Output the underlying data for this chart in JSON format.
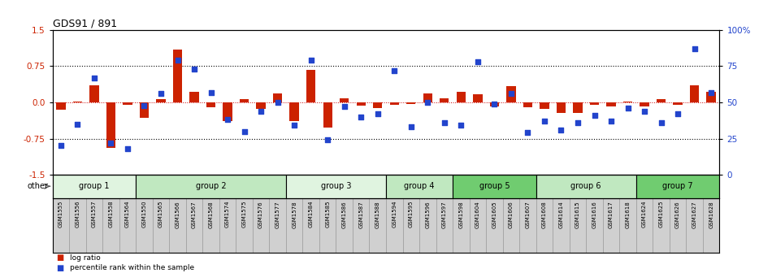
{
  "title": "GDS91 / 891",
  "samples": [
    "GSM1555",
    "GSM1556",
    "GSM1557",
    "GSM1558",
    "GSM1564",
    "GSM1550",
    "GSM1565",
    "GSM1566",
    "GSM1567",
    "GSM1568",
    "GSM1574",
    "GSM1575",
    "GSM1576",
    "GSM1577",
    "GSM1578",
    "GSM1584",
    "GSM1585",
    "GSM1586",
    "GSM1587",
    "GSM1588",
    "GSM1594",
    "GSM1595",
    "GSM1596",
    "GSM1597",
    "GSM1598",
    "GSM1604",
    "GSM1605",
    "GSM1606",
    "GSM1607",
    "GSM1608",
    "GSM1614",
    "GSM1615",
    "GSM1616",
    "GSM1617",
    "GSM1618",
    "GSM1624",
    "GSM1625",
    "GSM1626",
    "GSM1627",
    "GSM1628"
  ],
  "log_ratio": [
    -0.15,
    0.02,
    0.35,
    -0.95,
    -0.05,
    -0.32,
    0.06,
    1.1,
    0.22,
    -0.1,
    -0.38,
    0.06,
    -0.14,
    0.18,
    -0.38,
    0.68,
    -0.52,
    0.08,
    -0.06,
    -0.12,
    -0.05,
    -0.04,
    0.18,
    0.09,
    0.22,
    0.17,
    -0.08,
    0.33,
    -0.1,
    -0.14,
    -0.22,
    -0.22,
    -0.05,
    -0.08,
    0.02,
    -0.09,
    0.06,
    -0.05,
    0.35,
    0.22
  ],
  "percentile": [
    20,
    35,
    67,
    22,
    18,
    48,
    56,
    79,
    73,
    57,
    38,
    30,
    44,
    50,
    34,
    79,
    24,
    47,
    40,
    42,
    72,
    33,
    50,
    36,
    34,
    78,
    49,
    56,
    29,
    37,
    31,
    36,
    41,
    37,
    46,
    44,
    36,
    42,
    87,
    57
  ],
  "groups": [
    {
      "name": "group 1",
      "start": 0,
      "end": 4,
      "color": "#e0f4e0"
    },
    {
      "name": "group 2",
      "start": 5,
      "end": 13,
      "color": "#c0e8c0"
    },
    {
      "name": "group 3",
      "start": 14,
      "end": 19,
      "color": "#e0f4e0"
    },
    {
      "name": "group 4",
      "start": 20,
      "end": 23,
      "color": "#c0e8c0"
    },
    {
      "name": "group 5",
      "start": 24,
      "end": 28,
      "color": "#70cc70"
    },
    {
      "name": "group 6",
      "start": 29,
      "end": 34,
      "color": "#c0e8c0"
    },
    {
      "name": "group 7",
      "start": 35,
      "end": 39,
      "color": "#70cc70"
    }
  ],
  "bar_color": "#cc2200",
  "dot_color": "#2244cc",
  "ylim": [
    -1.5,
    1.5
  ],
  "yticks_left": [
    -1.5,
    -0.75,
    0.0,
    0.75,
    1.5
  ],
  "yticks_right_pct": [
    0,
    25,
    50,
    75,
    100
  ],
  "hlines_dotted": [
    -0.75,
    0.75
  ],
  "zero_line_color": "#cc0000",
  "ticklabel_bg": "#d0d0d0",
  "other_label": "other",
  "legend_bar_label": "log ratio",
  "legend_dot_label": "percentile rank within the sample"
}
